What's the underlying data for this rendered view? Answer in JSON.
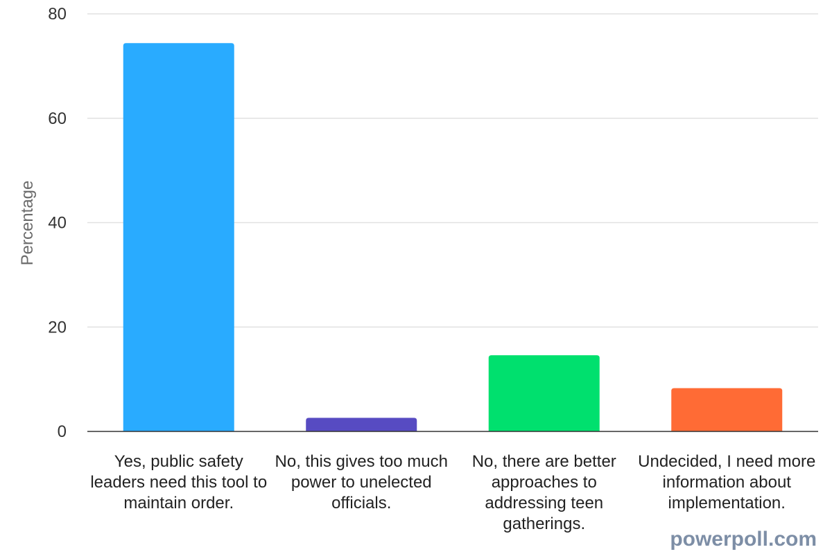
{
  "chart_data": {
    "type": "bar",
    "categories": [
      "Yes, public safety leaders need this tool to maintain order.",
      "No, this gives too much power to unelected officials.",
      "No, there are better approaches to addressing teen gatherings.",
      "Undecided, I need more information about implementation."
    ],
    "values": [
      74.4,
      2.6,
      14.6,
      8.3
    ],
    "colors": [
      "#29abff",
      "#574bc2",
      "#00e06e",
      "#ff6b35"
    ],
    "ylabel": "Percentage",
    "ylim": [
      0,
      80
    ],
    "yticks": [
      0,
      20,
      40,
      60,
      80
    ],
    "grid": true
  },
  "watermark": "powerpoll.com"
}
